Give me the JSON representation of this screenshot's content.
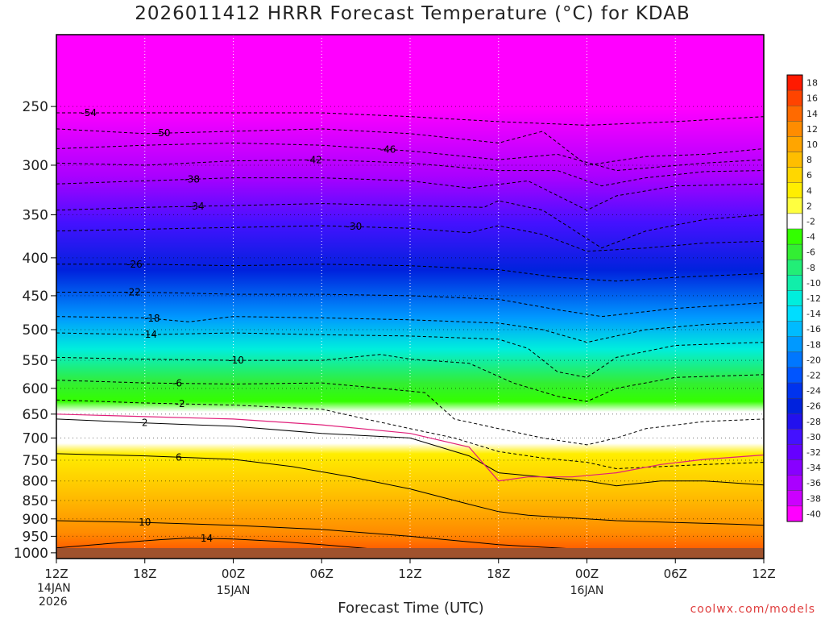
{
  "title": "2026011412 HRRR Forecast Temperature (°C) for KDAB",
  "xlabel": "Forecast Time (UTC)",
  "credit": "coolwx.com/models",
  "start_date_day": "14JAN",
  "start_date_year": "2026",
  "chart_data": {
    "type": "heatmap",
    "x_ticks": [
      {
        "hour": 0,
        "label": "12Z",
        "date": "14JAN"
      },
      {
        "hour": 6,
        "label": "18Z",
        "date": ""
      },
      {
        "hour": 12,
        "label": "00Z",
        "date": "15JAN"
      },
      {
        "hour": 18,
        "label": "06Z",
        "date": ""
      },
      {
        "hour": 24,
        "label": "12Z",
        "date": ""
      },
      {
        "hour": 30,
        "label": "18Z",
        "date": ""
      },
      {
        "hour": 36,
        "label": "00Z",
        "date": "16JAN"
      },
      {
        "hour": 42,
        "label": "06Z",
        "date": ""
      },
      {
        "hour": 48,
        "label": "12Z",
        "date": ""
      }
    ],
    "y_ticks": [
      250,
      300,
      350,
      400,
      450,
      500,
      550,
      600,
      650,
      700,
      750,
      800,
      850,
      900,
      950,
      1000
    ],
    "ylim": [
      1018,
      200
    ],
    "y_scale": "log-pressure",
    "colorbar": {
      "levels": [
        "18",
        "16",
        "14",
        "12",
        "10",
        "8",
        "6",
        "4",
        "2",
        "-2",
        "-4",
        "-6",
        "-8",
        "-10",
        "-12",
        "-14",
        "-16",
        "-18",
        "-20",
        "-22",
        "-24",
        "-26",
        "-28",
        "-30",
        "-32",
        "-34",
        "-36",
        "-38",
        "-40"
      ],
      "colors": [
        "#ff1a00",
        "#ff4400",
        "#ff6a00",
        "#ff8c00",
        "#ffa500",
        "#ffbe00",
        "#ffd700",
        "#ffee00",
        "#ffff40",
        "#ffffff",
        "#33ff00",
        "#33ee33",
        "#22ee77",
        "#11eeaa",
        "#00eedd",
        "#00ddff",
        "#00bbff",
        "#0099ff",
        "#0077ff",
        "#0055ff",
        "#0033ee",
        "#0022dd",
        "#2211ee",
        "#4411ff",
        "#6600ff",
        "#8800ff",
        "#aa00ff",
        "#cc00ff",
        "#ff00ff"
      ]
    },
    "isotherms": [
      {
        "label": "-54",
        "hours": [
          0,
          6,
          12,
          18,
          24,
          30,
          36,
          42,
          48
        ],
        "p": [
          255,
          255,
          255,
          255,
          258,
          262,
          265,
          262,
          258
        ],
        "label_hour": 2.2
      },
      {
        "label": "-50",
        "hours": [
          0,
          6,
          12,
          18,
          24,
          30,
          33,
          36,
          40,
          44,
          48
        ],
        "p": [
          268,
          272,
          270,
          268,
          272,
          280,
          270,
          300,
          292,
          290,
          285
        ],
        "label_hour": 7.2
      },
      {
        "label": "-46",
        "hours": [
          0,
          6,
          12,
          18,
          24,
          30,
          34,
          38,
          44,
          48
        ],
        "p": [
          285,
          282,
          280,
          282,
          287,
          295,
          290,
          305,
          298,
          295
        ],
        "label_hour": 22.5
      },
      {
        "label": "-42",
        "hours": [
          0,
          6,
          12,
          18,
          24,
          30,
          34,
          37,
          40,
          44,
          48
        ],
        "p": [
          298,
          300,
          296,
          295,
          298,
          305,
          305,
          320,
          312,
          306,
          305
        ],
        "label_hour": 17.5
      },
      {
        "label": "-38",
        "hours": [
          0,
          6,
          12,
          18,
          24,
          28,
          32,
          36,
          38,
          42,
          48
        ],
        "p": [
          318,
          315,
          312,
          312,
          315,
          322,
          315,
          345,
          330,
          320,
          318
        ],
        "label_hour": 9.2
      },
      {
        "label": "-34",
        "hours": [
          0,
          6,
          12,
          18,
          24,
          29,
          30,
          33,
          37,
          40,
          44,
          48
        ],
        "p": [
          345,
          342,
          340,
          338,
          340,
          342,
          335,
          345,
          388,
          368,
          355,
          350
        ],
        "label_hour": 9.5
      },
      {
        "label": "-30",
        "hours": [
          0,
          6,
          12,
          18,
          24,
          28,
          30,
          33,
          36,
          40,
          44,
          48
        ],
        "p": [
          368,
          366,
          364,
          362,
          365,
          370,
          362,
          372,
          392,
          388,
          382,
          380
        ],
        "label_hour": 20.2
      },
      {
        "label": "-26",
        "hours": [
          0,
          6,
          12,
          18,
          24,
          30,
          34,
          38,
          42,
          48
        ],
        "p": [
          408,
          408,
          410,
          408,
          410,
          415,
          425,
          430,
          425,
          420
        ],
        "label_hour": 5.3
      },
      {
        "label": "-22",
        "hours": [
          0,
          6,
          12,
          18,
          24,
          30,
          34,
          37,
          42,
          48
        ],
        "p": [
          445,
          445,
          448,
          448,
          450,
          455,
          470,
          480,
          468,
          460
        ],
        "label_hour": 5.2
      },
      {
        "label": "-18",
        "hours": [
          0,
          6,
          9,
          12,
          18,
          24,
          30,
          33,
          36,
          40,
          44,
          48
        ],
        "p": [
          480,
          482,
          488,
          480,
          482,
          485,
          490,
          500,
          520,
          500,
          492,
          488
        ],
        "label_hour": 6.5
      },
      {
        "label": "-14",
        "hours": [
          0,
          6,
          12,
          18,
          24,
          30,
          32,
          34,
          36,
          38,
          42,
          48
        ],
        "p": [
          505,
          508,
          505,
          508,
          510,
          515,
          530,
          570,
          580,
          545,
          525,
          520
        ],
        "label_hour": 6.3
      },
      {
        "label": "-10",
        "hours": [
          0,
          6,
          12,
          18,
          22,
          24,
          28,
          31,
          34,
          36,
          38,
          42,
          48
        ],
        "p": [
          545,
          548,
          550,
          550,
          540,
          548,
          555,
          590,
          615,
          625,
          600,
          580,
          575
        ],
        "label_hour": 12.2
      },
      {
        "label": "-6",
        "hours": [
          0,
          6,
          12,
          18,
          22,
          25,
          27,
          30,
          33,
          36,
          38,
          40,
          44,
          48
        ],
        "p": [
          585,
          590,
          592,
          590,
          600,
          608,
          660,
          680,
          700,
          715,
          700,
          680,
          665,
          660
        ],
        "label_hour": 8.2
      },
      {
        "label": "-2",
        "hours": [
          0,
          6,
          12,
          18,
          21,
          24,
          27,
          30,
          33,
          36,
          38,
          41,
          44,
          48
        ],
        "p": [
          622,
          628,
          632,
          640,
          660,
          680,
          700,
          730,
          745,
          755,
          770,
          765,
          760,
          755
        ],
        "label_hour": 8.4
      },
      {
        "label": "2",
        "hours": [
          0,
          6,
          12,
          18,
          24,
          28,
          30,
          33,
          36,
          38,
          41,
          44,
          48
        ],
        "p": [
          660,
          668,
          675,
          690,
          700,
          740,
          780,
          790,
          800,
          812,
          800,
          800,
          810
        ],
        "label_hour": 6.0
      },
      {
        "label": "6",
        "hours": [
          0,
          6,
          12,
          16,
          20,
          24,
          28,
          30,
          32,
          34,
          36,
          38,
          42,
          46,
          48
        ],
        "p": [
          735,
          740,
          748,
          765,
          790,
          820,
          860,
          880,
          890,
          895,
          900,
          905,
          910,
          915,
          918
        ],
        "label_hour": 8.3
      },
      {
        "label": "10",
        "hours": [
          0,
          6,
          12,
          18,
          24,
          30,
          36,
          42,
          48
        ],
        "p": [
          905,
          910,
          918,
          930,
          950,
          975,
          990,
          1000,
          1005
        ],
        "label_hour": 6.0
      },
      {
        "label": "14",
        "hours": [
          0,
          4,
          7,
          9,
          12,
          15,
          18,
          22,
          26
        ],
        "p": [
          985,
          970,
          960,
          955,
          958,
          965,
          975,
          990,
          1005
        ],
        "label_hour": 10.2
      }
    ]
  }
}
